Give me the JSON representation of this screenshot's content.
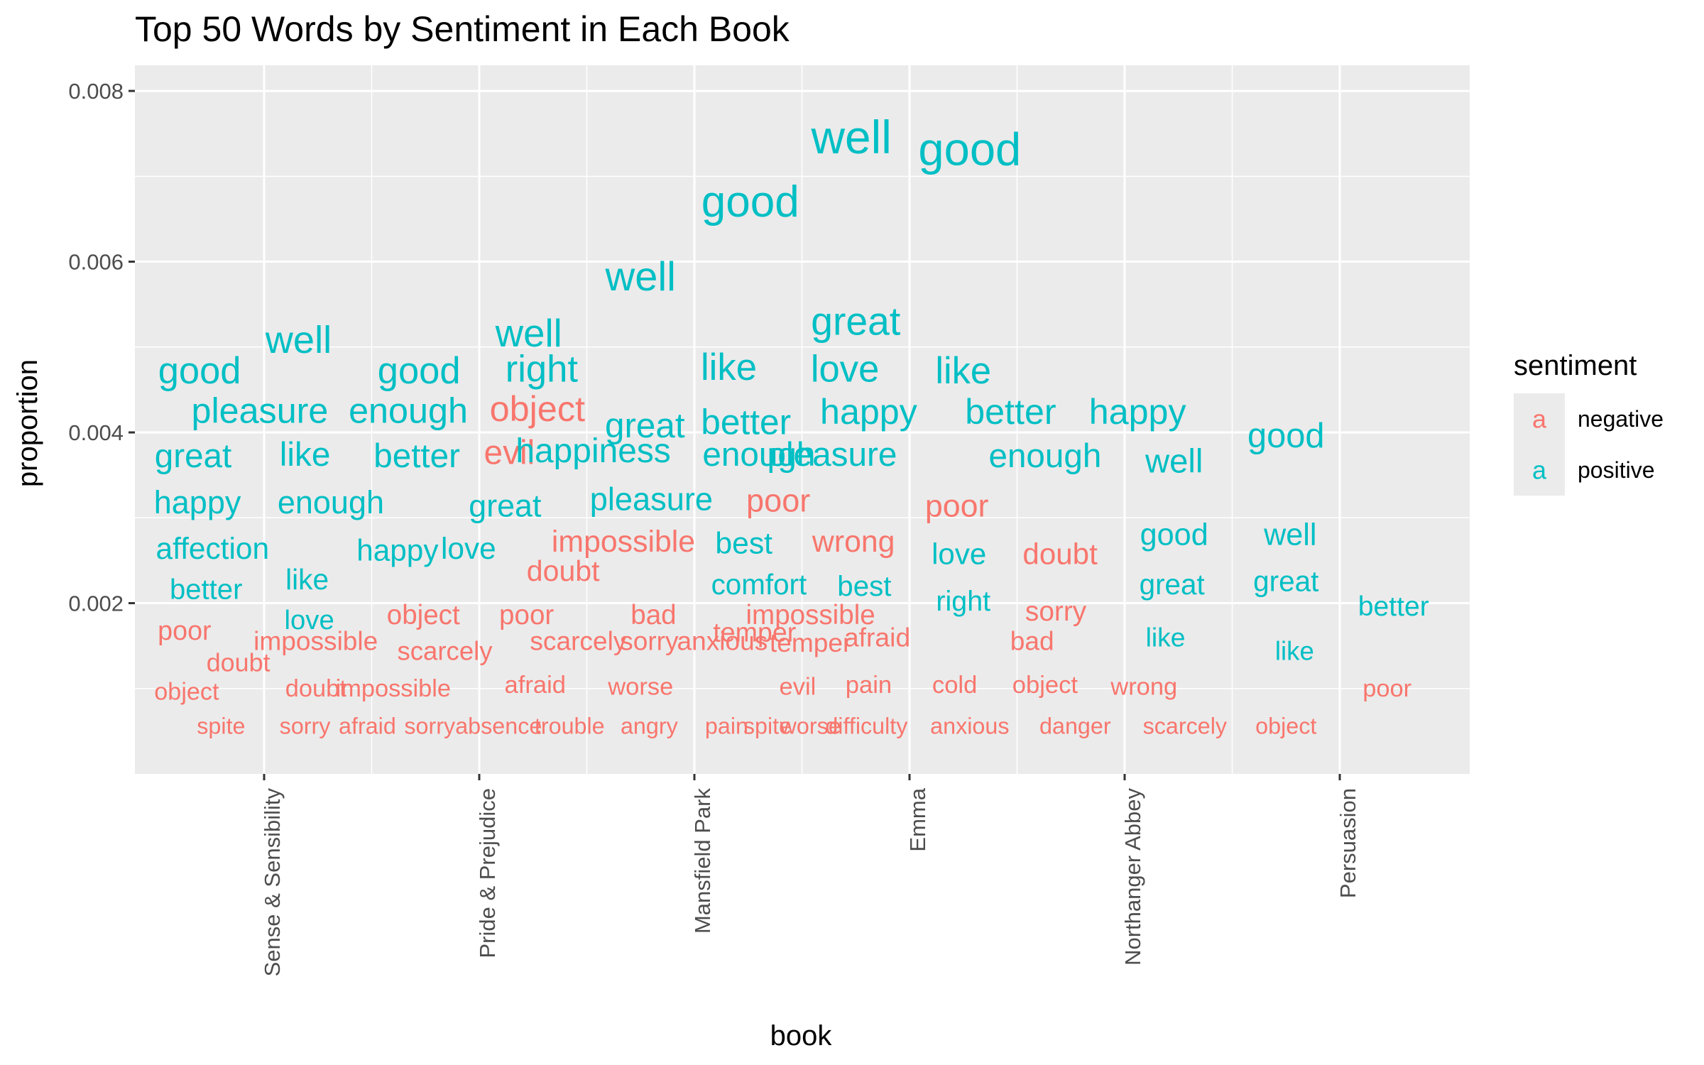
{
  "chart_data": {
    "type": "scatter",
    "title": "Top 50 Words by Sentiment in Each Book",
    "xlabel": "book",
    "ylabel": "proportion",
    "categories": [
      "Sense & Sensibility",
      "Pride & Prejudice",
      "Mansfield Park",
      "Emma",
      "Northanger Abbey",
      "Persuasion"
    ],
    "ylim": [
      0,
      0.0083
    ],
    "yticks": [
      0.002,
      0.004,
      0.006,
      0.008
    ],
    "ytick_labels": [
      "0.002",
      "0.004",
      "0.006",
      "0.008"
    ],
    "grid": true,
    "legend": {
      "title": "sentiment",
      "position": "right",
      "key_glyph": "a",
      "entries": [
        {
          "label": "negative",
          "color": "#F8766D"
        },
        {
          "label": "positive",
          "color": "#00BFC4"
        }
      ]
    },
    "colors": {
      "negative": "#F8766D",
      "positive": "#00BFC4"
    },
    "points": [
      {
        "word": "good",
        "x": 0.7,
        "y": 0.00472,
        "s": "positive"
      },
      {
        "word": "well",
        "x": 1.16,
        "y": 0.00508,
        "s": "positive"
      },
      {
        "word": "good",
        "x": 1.72,
        "y": 0.00472,
        "s": "positive"
      },
      {
        "word": "pleasure",
        "x": 0.98,
        "y": 0.00426,
        "s": "positive"
      },
      {
        "word": "enough",
        "x": 1.67,
        "y": 0.00426,
        "s": "positive"
      },
      {
        "word": "great",
        "x": 0.67,
        "y": 0.00372,
        "s": "positive"
      },
      {
        "word": "like",
        "x": 1.19,
        "y": 0.00374,
        "s": "positive"
      },
      {
        "word": "better",
        "x": 1.71,
        "y": 0.00372,
        "s": "positive"
      },
      {
        "word": "happy",
        "x": 0.69,
        "y": 0.00318,
        "s": "positive"
      },
      {
        "word": "enough",
        "x": 1.31,
        "y": 0.00318,
        "s": "positive"
      },
      {
        "word": "happy",
        "x": 1.62,
        "y": 0.00262,
        "s": "positive"
      },
      {
        "word": "affection",
        "x": 0.76,
        "y": 0.00264,
        "s": "positive"
      },
      {
        "word": "like",
        "x": 1.2,
        "y": 0.00228,
        "s": "positive"
      },
      {
        "word": "better",
        "x": 0.73,
        "y": 0.00216,
        "s": "positive"
      },
      {
        "word": "love",
        "x": 1.21,
        "y": 0.0018,
        "s": "positive"
      },
      {
        "word": "poor",
        "x": 0.63,
        "y": 0.00168,
        "s": "negative"
      },
      {
        "word": "object",
        "x": 1.74,
        "y": 0.00186,
        "s": "negative"
      },
      {
        "word": "impossible",
        "x": 1.24,
        "y": 0.00156,
        "s": "negative"
      },
      {
        "word": "scarcely",
        "x": 1.84,
        "y": 0.00144,
        "s": "negative"
      },
      {
        "word": "doubt",
        "x": 0.88,
        "y": 0.0013,
        "s": "negative"
      },
      {
        "word": "object",
        "x": 0.64,
        "y": 0.00096,
        "s": "negative"
      },
      {
        "word": "doubt",
        "x": 1.24,
        "y": 0.001,
        "s": "negative"
      },
      {
        "word": "impossible",
        "x": 1.6,
        "y": 0.001,
        "s": "negative"
      },
      {
        "word": "spite",
        "x": 0.8,
        "y": 0.00056,
        "s": "negative"
      },
      {
        "word": "sorry",
        "x": 1.19,
        "y": 0.00056,
        "s": "negative"
      },
      {
        "word": "afraid",
        "x": 1.48,
        "y": 0.00056,
        "s": "negative"
      },
      {
        "word": "sorry",
        "x": 1.77,
        "y": 0.00056,
        "s": "negative"
      },
      {
        "word": "well",
        "x": 2.23,
        "y": 0.00516,
        "s": "positive"
      },
      {
        "word": "right",
        "x": 2.29,
        "y": 0.00474,
        "s": "positive"
      },
      {
        "word": "object",
        "x": 2.27,
        "y": 0.00428,
        "s": "negative"
      },
      {
        "word": "evil",
        "x": 2.14,
        "y": 0.00376,
        "s": "negative"
      },
      {
        "word": "happiness",
        "x": 2.53,
        "y": 0.00378,
        "s": "positive"
      },
      {
        "word": "great",
        "x": 2.12,
        "y": 0.00314,
        "s": "positive"
      },
      {
        "word": "love",
        "x": 1.95,
        "y": 0.00264,
        "s": "positive"
      },
      {
        "word": "doubt",
        "x": 2.39,
        "y": 0.00238,
        "s": "negative"
      },
      {
        "word": "impossible",
        "x": 2.67,
        "y": 0.00272,
        "s": "negative"
      },
      {
        "word": "poor",
        "x": 2.22,
        "y": 0.00186,
        "s": "negative"
      },
      {
        "word": "scarcely",
        "x": 2.46,
        "y": 0.00156,
        "s": "negative"
      },
      {
        "word": "afraid",
        "x": 2.26,
        "y": 0.00104,
        "s": "negative"
      },
      {
        "word": "absence",
        "x": 2.09,
        "y": 0.00056,
        "s": "negative"
      },
      {
        "word": "trouble",
        "x": 2.42,
        "y": 0.00056,
        "s": "negative"
      },
      {
        "word": "well",
        "x": 2.75,
        "y": 0.00582,
        "s": "positive"
      },
      {
        "word": "great",
        "x": 2.77,
        "y": 0.00408,
        "s": "positive"
      },
      {
        "word": "pleasure",
        "x": 2.8,
        "y": 0.00322,
        "s": "positive"
      },
      {
        "word": "bad",
        "x": 2.81,
        "y": 0.00186,
        "s": "negative"
      },
      {
        "word": "sorry",
        "x": 2.79,
        "y": 0.00156,
        "s": "negative"
      },
      {
        "word": "worse",
        "x": 2.75,
        "y": 0.00102,
        "s": "negative"
      },
      {
        "word": "angry",
        "x": 2.79,
        "y": 0.00056,
        "s": "negative"
      },
      {
        "word": "good",
        "x": 3.26,
        "y": 0.0067,
        "s": "positive"
      },
      {
        "word": "like",
        "x": 3.16,
        "y": 0.00476,
        "s": "positive"
      },
      {
        "word": "better",
        "x": 3.24,
        "y": 0.00412,
        "s": "positive"
      },
      {
        "word": "enough",
        "x": 3.3,
        "y": 0.00374,
        "s": "positive"
      },
      {
        "word": "poor",
        "x": 3.39,
        "y": 0.0032,
        "s": "negative"
      },
      {
        "word": "best",
        "x": 3.23,
        "y": 0.0027,
        "s": "positive"
      },
      {
        "word": "comfort",
        "x": 3.3,
        "y": 0.00222,
        "s": "positive"
      },
      {
        "word": "temper",
        "x": 3.28,
        "y": 0.00166,
        "s": "negative"
      },
      {
        "word": "anxious",
        "x": 3.13,
        "y": 0.00156,
        "s": "negative"
      },
      {
        "word": "pain",
        "x": 3.15,
        "y": 0.00056,
        "s": "negative"
      },
      {
        "word": "spite",
        "x": 3.34,
        "y": 0.00056,
        "s": "negative"
      },
      {
        "word": "well",
        "x": 3.73,
        "y": 0.00746,
        "s": "positive"
      },
      {
        "word": "great",
        "x": 3.75,
        "y": 0.0053,
        "s": "positive"
      },
      {
        "word": "love",
        "x": 3.7,
        "y": 0.00474,
        "s": "positive"
      },
      {
        "word": "happy",
        "x": 3.81,
        "y": 0.00424,
        "s": "positive"
      },
      {
        "word": "pleasure",
        "x": 3.64,
        "y": 0.00374,
        "s": "positive"
      },
      {
        "word": "wrong",
        "x": 3.74,
        "y": 0.00272,
        "s": "negative"
      },
      {
        "word": "best",
        "x": 3.79,
        "y": 0.0022,
        "s": "positive"
      },
      {
        "word": "impossible",
        "x": 3.54,
        "y": 0.00186,
        "s": "negative"
      },
      {
        "word": "afraid",
        "x": 3.85,
        "y": 0.0016,
        "s": "negative"
      },
      {
        "word": "temper",
        "x": 3.54,
        "y": 0.00154,
        "s": "negative"
      },
      {
        "word": "evil",
        "x": 3.48,
        "y": 0.00102,
        "s": "negative"
      },
      {
        "word": "pain",
        "x": 3.81,
        "y": 0.00104,
        "s": "negative"
      },
      {
        "word": "worse",
        "x": 3.54,
        "y": 0.00056,
        "s": "negative"
      },
      {
        "word": "difficulty",
        "x": 3.8,
        "y": 0.00056,
        "s": "negative"
      },
      {
        "word": "good",
        "x": 4.28,
        "y": 0.00732,
        "s": "positive"
      },
      {
        "word": "like",
        "x": 4.25,
        "y": 0.00472,
        "s": "positive"
      },
      {
        "word": "better",
        "x": 4.47,
        "y": 0.00424,
        "s": "positive"
      },
      {
        "word": "enough",
        "x": 4.63,
        "y": 0.00372,
        "s": "positive"
      },
      {
        "word": "poor",
        "x": 4.22,
        "y": 0.00314,
        "s": "negative"
      },
      {
        "word": "love",
        "x": 4.23,
        "y": 0.00258,
        "s": "positive"
      },
      {
        "word": "doubt",
        "x": 4.7,
        "y": 0.00258,
        "s": "negative"
      },
      {
        "word": "right",
        "x": 4.25,
        "y": 0.00202,
        "s": "positive"
      },
      {
        "word": "sorry",
        "x": 4.68,
        "y": 0.0019,
        "s": "negative"
      },
      {
        "word": "bad",
        "x": 4.57,
        "y": 0.00156,
        "s": "negative"
      },
      {
        "word": "cold",
        "x": 4.21,
        "y": 0.00104,
        "s": "negative"
      },
      {
        "word": "object",
        "x": 4.63,
        "y": 0.00104,
        "s": "negative"
      },
      {
        "word": "anxious",
        "x": 4.28,
        "y": 0.00056,
        "s": "negative"
      },
      {
        "word": "danger",
        "x": 4.77,
        "y": 0.00056,
        "s": "negative"
      },
      {
        "word": "happy",
        "x": 5.06,
        "y": 0.00424,
        "s": "positive"
      },
      {
        "word": "well",
        "x": 5.23,
        "y": 0.00366,
        "s": "positive"
      },
      {
        "word": "good",
        "x": 5.23,
        "y": 0.0028,
        "s": "positive"
      },
      {
        "word": "great",
        "x": 5.22,
        "y": 0.00222,
        "s": "positive"
      },
      {
        "word": "like",
        "x": 5.19,
        "y": 0.0016,
        "s": "positive"
      },
      {
        "word": "wrong",
        "x": 5.09,
        "y": 0.00102,
        "s": "negative"
      },
      {
        "word": "scarcely",
        "x": 5.28,
        "y": 0.00056,
        "s": "negative"
      },
      {
        "word": "good",
        "x": 5.75,
        "y": 0.00396,
        "s": "positive"
      },
      {
        "word": "well",
        "x": 5.77,
        "y": 0.0028,
        "s": "positive"
      },
      {
        "word": "great",
        "x": 5.75,
        "y": 0.00226,
        "s": "positive"
      },
      {
        "word": "like",
        "x": 5.79,
        "y": 0.00144,
        "s": "positive"
      },
      {
        "word": "object",
        "x": 5.75,
        "y": 0.00056,
        "s": "negative"
      },
      {
        "word": "better",
        "x": 6.25,
        "y": 0.00196,
        "s": "positive"
      },
      {
        "word": "poor",
        "x": 6.22,
        "y": 0.001,
        "s": "negative"
      }
    ]
  }
}
